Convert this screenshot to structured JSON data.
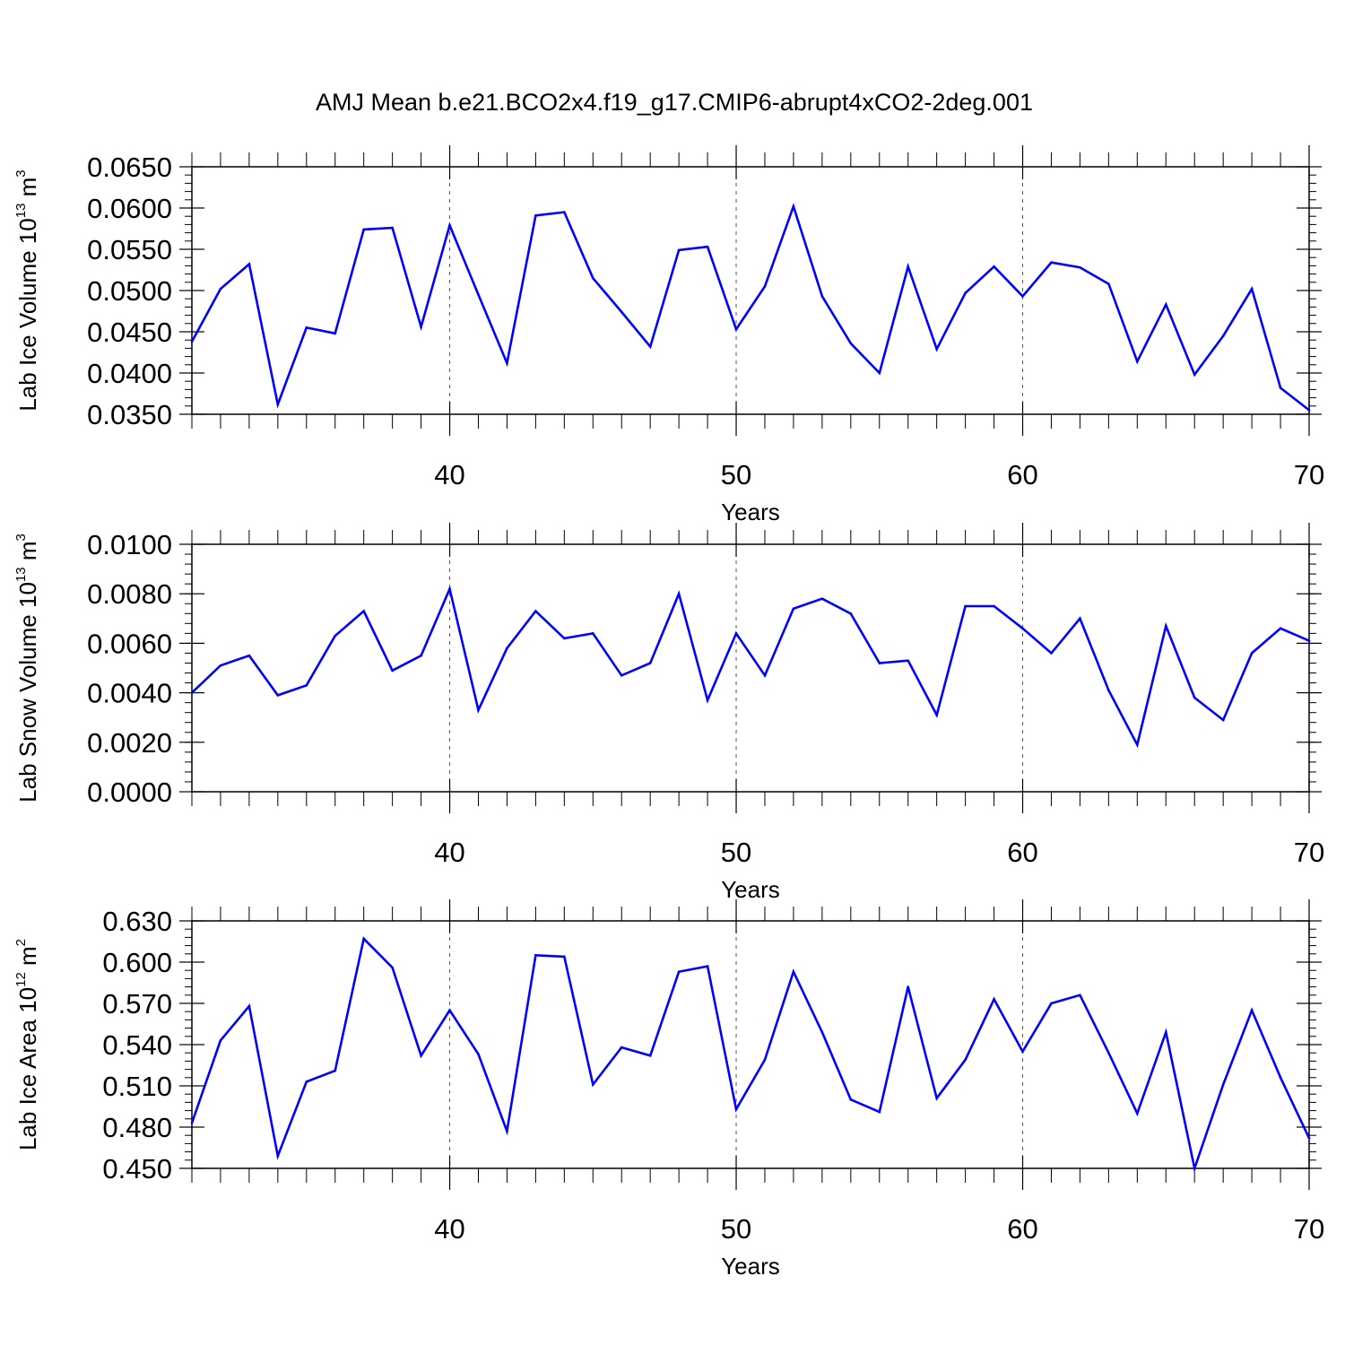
{
  "figure_title": "AMJ Mean b.e21.BCO2x4.f19_g17.CMIP6-abrupt4xCO2-2deg.001",
  "chart_data": [
    {
      "type": "line",
      "ylabel": {
        "base": "Lab Ice Volume 10",
        "exp": "13",
        "unit": " m",
        "unit_exp": "3"
      },
      "xlabel": "Years",
      "xlim": [
        31,
        70
      ],
      "ylim": [
        0.035,
        0.065
      ],
      "ytick_step": 0.005,
      "yminor_step": 0.001,
      "ytick_labels": [
        "0.0350",
        "0.0400",
        "0.0450",
        "0.0500",
        "0.0550",
        "0.0600",
        "0.0650"
      ],
      "xticks": [
        40,
        50,
        60,
        70
      ],
      "xtick_labels": [
        "40",
        "50",
        "60",
        "70"
      ],
      "grid_x": [
        40,
        50,
        60
      ],
      "color": "#0000ff",
      "x": [
        31,
        32,
        33,
        34,
        35,
        36,
        37,
        38,
        39,
        40,
        41,
        42,
        43,
        44,
        45,
        46,
        47,
        48,
        49,
        50,
        51,
        52,
        53,
        54,
        55,
        56,
        57,
        58,
        59,
        60,
        61,
        62,
        63,
        64,
        65,
        66,
        67,
        68,
        69,
        70
      ],
      "y": [
        0.0438,
        0.0502,
        0.0532,
        0.0362,
        0.0455,
        0.0448,
        0.0574,
        0.0576,
        0.0456,
        0.0579,
        0.0495,
        0.0412,
        0.0591,
        0.0595,
        0.0515,
        0.0474,
        0.0432,
        0.0549,
        0.0553,
        0.0453,
        0.0505,
        0.0602,
        0.0493,
        0.0436,
        0.04,
        0.0529,
        0.0429,
        0.0497,
        0.0529,
        0.0493,
        0.0534,
        0.0528,
        0.0508,
        0.0414,
        0.0483,
        0.0398,
        0.0445,
        0.0502,
        0.0382,
        0.0355
      ]
    },
    {
      "type": "line",
      "ylabel": {
        "base": "Lab Snow Volume 10",
        "exp": "13",
        "unit": " m",
        "unit_exp": "3"
      },
      "xlabel": "Years",
      "xlim": [
        31,
        70
      ],
      "ylim": [
        0.0,
        0.01
      ],
      "ytick_step": 0.002,
      "yminor_step": 0.0004,
      "ytick_labels": [
        "0.0000",
        "0.0020",
        "0.0040",
        "0.0060",
        "0.0080",
        "0.0100"
      ],
      "xticks": [
        40,
        50,
        60,
        70
      ],
      "xtick_labels": [
        "40",
        "50",
        "60",
        "70"
      ],
      "grid_x": [
        40,
        50,
        60
      ],
      "color": "#0000ff",
      "x": [
        31,
        32,
        33,
        34,
        35,
        36,
        37,
        38,
        39,
        40,
        41,
        42,
        43,
        44,
        45,
        46,
        47,
        48,
        49,
        50,
        51,
        52,
        53,
        54,
        55,
        56,
        57,
        58,
        59,
        60,
        61,
        62,
        63,
        64,
        65,
        66,
        67,
        68,
        69,
        70
      ],
      "y": [
        0.004,
        0.0051,
        0.0055,
        0.0039,
        0.0043,
        0.0063,
        0.0073,
        0.0049,
        0.0055,
        0.0082,
        0.0033,
        0.0058,
        0.0073,
        0.0062,
        0.0064,
        0.0047,
        0.0052,
        0.008,
        0.0037,
        0.0064,
        0.0047,
        0.0074,
        0.0078,
        0.0072,
        0.0052,
        0.0053,
        0.0031,
        0.0075,
        0.0075,
        0.0066,
        0.0056,
        0.007,
        0.0041,
        0.0019,
        0.0067,
        0.0038,
        0.0029,
        0.0056,
        0.0066,
        0.0061
      ]
    },
    {
      "type": "line",
      "ylabel": {
        "base": "Lab Ice Area 10",
        "exp": "12",
        "unit": " m",
        "unit_exp": "2"
      },
      "xlabel": "Years",
      "xlim": [
        31,
        70
      ],
      "ylim": [
        0.45,
        0.63
      ],
      "ytick_step": 0.03,
      "yminor_step": 0.006,
      "ytick_labels": [
        "0.450",
        "0.480",
        "0.510",
        "0.540",
        "0.570",
        "0.600",
        "0.630"
      ],
      "xticks": [
        40,
        50,
        60,
        70
      ],
      "xtick_labels": [
        "40",
        "50",
        "60",
        "70"
      ],
      "grid_x": [
        40,
        50,
        60
      ],
      "color": "#0000ff",
      "x": [
        31,
        32,
        33,
        34,
        35,
        36,
        37,
        38,
        39,
        40,
        41,
        42,
        43,
        44,
        45,
        46,
        47,
        48,
        49,
        50,
        51,
        52,
        53,
        54,
        55,
        56,
        57,
        58,
        59,
        60,
        61,
        62,
        63,
        64,
        65,
        66,
        67,
        68,
        69,
        70
      ],
      "y": [
        0.483,
        0.543,
        0.568,
        0.459,
        0.513,
        0.521,
        0.617,
        0.596,
        0.532,
        0.565,
        0.533,
        0.477,
        0.605,
        0.604,
        0.511,
        0.538,
        0.532,
        0.593,
        0.597,
        0.493,
        0.529,
        0.593,
        0.549,
        0.5,
        0.491,
        0.582,
        0.501,
        0.529,
        0.573,
        0.535,
        0.57,
        0.576,
        0.534,
        0.49,
        0.549,
        0.45,
        0.511,
        0.565,
        0.516,
        0.472
      ]
    }
  ]
}
